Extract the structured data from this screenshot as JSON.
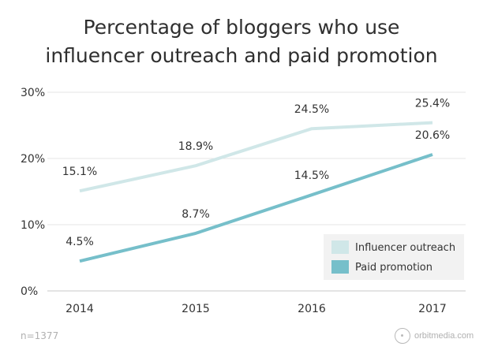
{
  "chart_data": {
    "type": "line",
    "title": [
      "Percentage of bloggers who use",
      "influencer outreach and paid promotion"
    ],
    "categories": [
      "2014",
      "2015",
      "2016",
      "2017"
    ],
    "ylim": [
      0,
      30
    ],
    "yticks": [
      0,
      10,
      20,
      30
    ],
    "ytick_labels": [
      "0%",
      "10%",
      "20%",
      "30%"
    ],
    "grid": true,
    "legend_position": "bottom-right",
    "series": [
      {
        "name": "Influencer outreach",
        "values": [
          15.1,
          18.9,
          24.5,
          25.4
        ],
        "labels": [
          "15.1%",
          "18.9%",
          "24.5%",
          "25.4%"
        ],
        "color": "#d0e7e8"
      },
      {
        "name": "Paid promotion",
        "values": [
          4.5,
          8.7,
          14.5,
          20.6
        ],
        "labels": [
          "4.5%",
          "8.7%",
          "14.5%",
          "20.6%"
        ],
        "color": "#76bfca"
      }
    ]
  },
  "footnote": "n=1377",
  "brand": {
    "name": "orbitmedia.com",
    "icon": "orbit-circle-icon"
  }
}
